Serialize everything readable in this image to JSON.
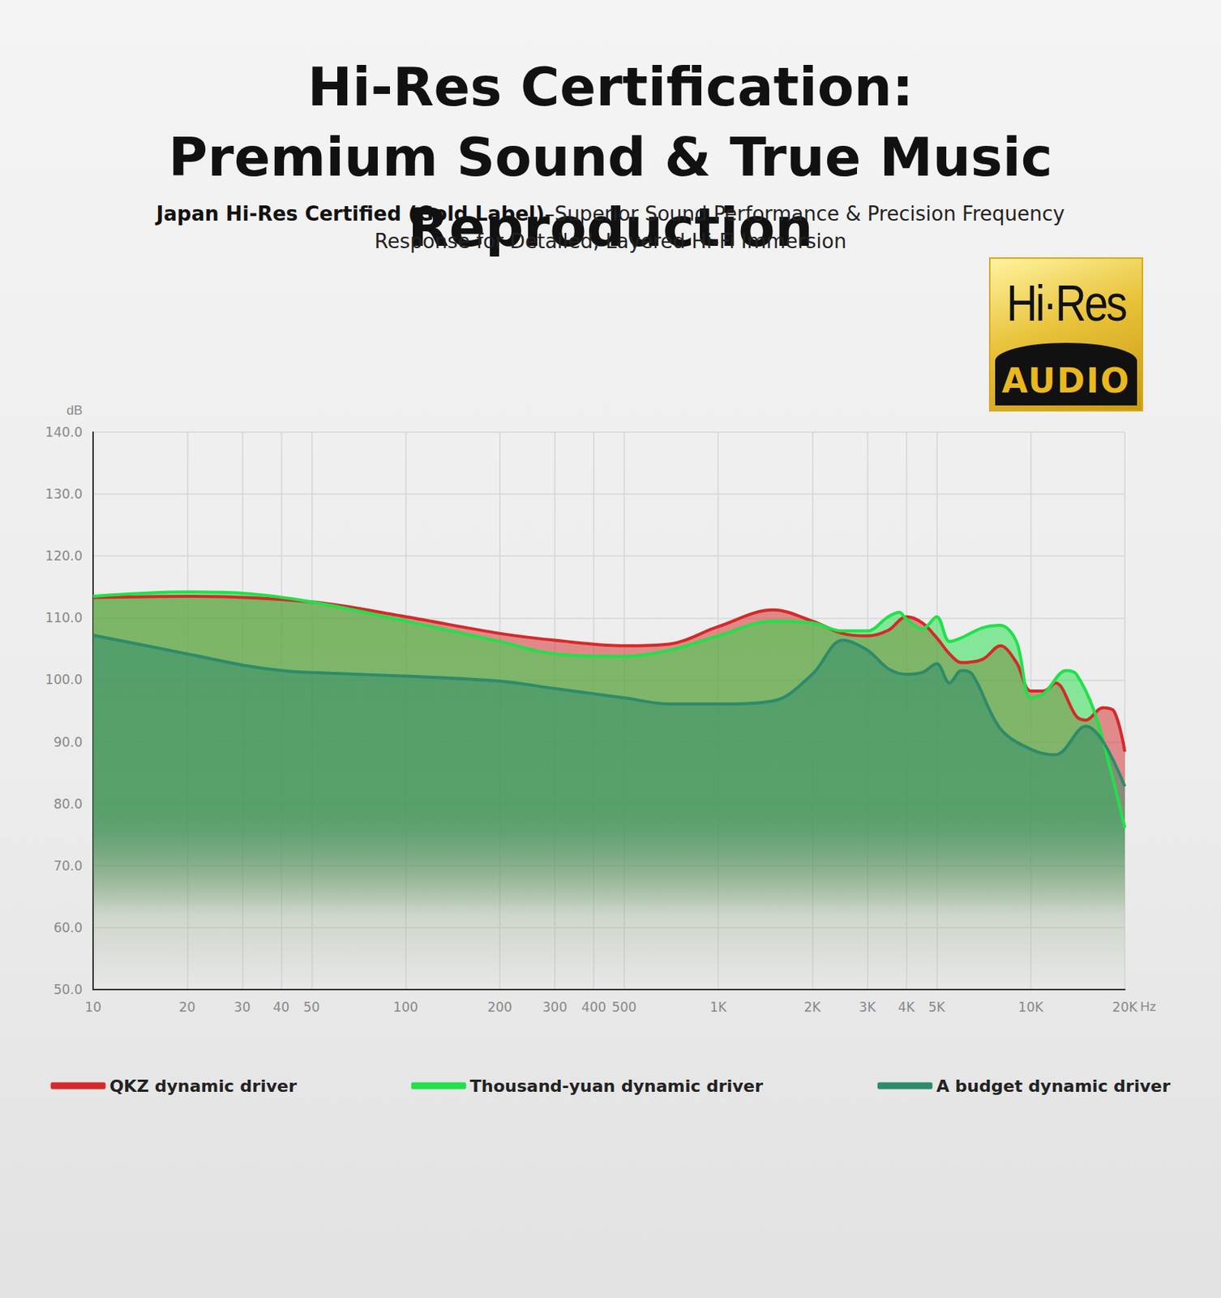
{
  "chart_data": {
    "type": "line",
    "title": "Hi-Res Certification: Premium Sound & True Music Reproduction",
    "subtitle": [
      "Japan Hi-Res Certified (Gold Label)",
      "–Superior Sound Performance & Precision Frequency Response for Detailed, Layered Hi-Fi Immersion"
    ],
    "annotations": [
      "Hi·Res",
      "AUDIO"
    ],
    "x_label": "Hz",
    "y_label": "dB",
    "log": "x",
    "grid": true,
    "legend": "bottom",
    "xlim": [
      10,
      20000
    ],
    "xticks": [
      10,
      20,
      30,
      40,
      50,
      100,
      200,
      300,
      400,
      500,
      {
        "value": 1000,
        "label": "1K"
      },
      {
        "value": 2000,
        "label": "2K"
      },
      {
        "value": 3000,
        "label": "3K"
      },
      {
        "value": 4000,
        "label": "4K"
      },
      {
        "value": 5000,
        "label": "5K"
      },
      {
        "value": 10000,
        "label": "10K"
      },
      {
        "value": 20000,
        "label": "20K"
      }
    ],
    "ylim": [
      50,
      140
    ],
    "yticks": [
      {
        "value": 50,
        "label": "50.0"
      },
      {
        "value": 60,
        "label": "60.0"
      },
      {
        "value": 70,
        "label": "70.0"
      },
      {
        "value": 80,
        "label": "80.0"
      },
      {
        "value": 90,
        "label": "90.0"
      },
      {
        "value": 100,
        "label": "100.0"
      },
      {
        "value": 110,
        "label": "110.0"
      },
      {
        "value": 120,
        "label": "120.0"
      },
      {
        "value": 130,
        "label": "130.0"
      },
      {
        "value": 140,
        "label": "140.0"
      }
    ],
    "series": [
      {
        "name": "QKZ dynamic driver",
        "color": "#d42a2a",
        "x": [
          10,
          20,
          50,
          100,
          200,
          300,
          500,
          700,
          1000,
          1500,
          2000,
          2500,
          3000,
          3500,
          4000,
          4500,
          5000,
          5500,
          6000,
          7000,
          8000,
          9000,
          10000,
          11000,
          12000,
          14000,
          15000,
          17000,
          18500,
          20000
        ],
        "values": [
          113.3,
          113.5,
          112.6,
          110.2,
          107.5,
          106.4,
          105.5,
          105.8,
          108.6,
          111.3,
          109.5,
          107.5,
          107.1,
          108.0,
          110.2,
          109.2,
          106.8,
          104.2,
          102.8,
          103.3,
          105.5,
          102.8,
          98.2,
          98.2,
          99.5,
          94.1,
          93.5,
          95.5,
          94.9,
          88.4
        ]
      },
      {
        "name": "Thousand-yuan dynamic driver",
        "color": "#22e04a",
        "x": [
          10,
          20,
          30,
          50,
          100,
          200,
          300,
          500,
          700,
          1000,
          1500,
          2000,
          2500,
          3000,
          3500,
          3800,
          4000,
          4500,
          5000,
          5500,
          6000,
          7000,
          8000,
          9000,
          10000,
          11000,
          13000,
          14000,
          16000,
          18000,
          20000
        ],
        "values": [
          113.5,
          114.2,
          114.0,
          112.6,
          109.5,
          106.2,
          104.2,
          103.8,
          104.8,
          107.1,
          109.5,
          109.2,
          107.9,
          107.9,
          110.2,
          110.9,
          109.8,
          108.2,
          110.2,
          106.2,
          106.8,
          108.4,
          108.8,
          106.2,
          97.1,
          97.8,
          101.5,
          100.9,
          94.8,
          85.5,
          76.1
        ]
      },
      {
        "name": "A budget dynamic driver",
        "color": "#2e8b6a",
        "x": [
          10,
          20,
          30,
          40,
          50,
          100,
          200,
          300,
          500,
          700,
          1000,
          1500,
          2000,
          2500,
          3000,
          3500,
          4000,
          4500,
          5000,
          5500,
          6000,
          6500,
          8000,
          10000,
          12000,
          15000,
          17000,
          20000
        ],
        "values": [
          107.2,
          104.2,
          102.4,
          101.5,
          101.2,
          100.6,
          99.8,
          98.6,
          97.1,
          96.1,
          96.1,
          96.6,
          100.9,
          106.4,
          104.8,
          101.8,
          100.9,
          101.2,
          102.6,
          99.5,
          101.5,
          100.9,
          92.1,
          88.8,
          87.9,
          92.5,
          90.1,
          82.8
        ]
      }
    ]
  }
}
